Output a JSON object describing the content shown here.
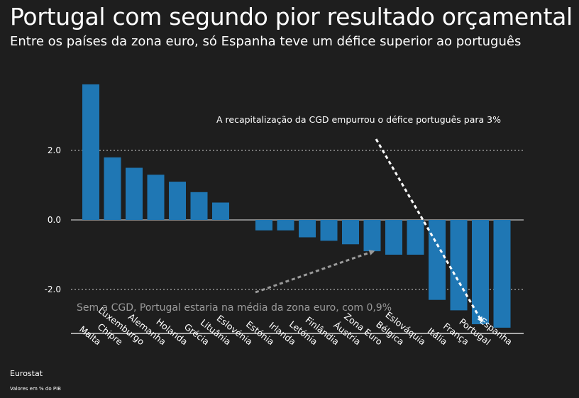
{
  "title": "Portugal com segundo pior resultado orçamental",
  "subtitle": "Entre os países da zona euro, só Espanha teve um défice superior ao português",
  "source": "Eurostat",
  "unit_note": "Valores em % do PIB",
  "colors": {
    "background": "#1e1e1e",
    "bar": "#1f77b4",
    "grid": "#ffffff",
    "annotation_white": "#ffffff",
    "annotation_grey": "#9a9a9a"
  },
  "chart_data": {
    "type": "bar",
    "categories": [
      "Malta",
      "Chipre",
      "Luxemburgo",
      "Alemanha",
      "Holanda",
      "Grécia",
      "Lituânia",
      "Eslovénia",
      "Estónia",
      "Irlanda",
      "Letónia",
      "Finlândia",
      "Áustria",
      "Zona Euro",
      "Bélgica",
      "Eslováquia",
      "Itália",
      "França",
      "Portugal",
      "Espanha"
    ],
    "values": [
      3.9,
      1.8,
      1.5,
      1.3,
      1.1,
      0.8,
      0.5,
      0.0,
      -0.3,
      -0.3,
      -0.5,
      -0.6,
      -0.7,
      -0.9,
      -1.0,
      -1.0,
      -2.3,
      -2.6,
      -3.0,
      -3.1
    ],
    "title": "Portugal com segundo pior resultado orçamental",
    "xlabel": "",
    "ylabel": "",
    "ylim": [
      -3.2,
      4.0
    ],
    "yticks": [
      2.0,
      0.0,
      -2.0
    ],
    "ytick_labels": [
      "2.0",
      "0.0",
      "-2.0"
    ],
    "grid": true,
    "annotations": [
      {
        "text": "A recapitalização da CGD empurrou o défice português para 3%",
        "style": "white",
        "points_to": "Portugal"
      },
      {
        "text": "Sem a CGD, Portugal estaria na média da zona euro, com 0,9%",
        "style": "grey",
        "points_to": "Zona Euro"
      }
    ]
  }
}
